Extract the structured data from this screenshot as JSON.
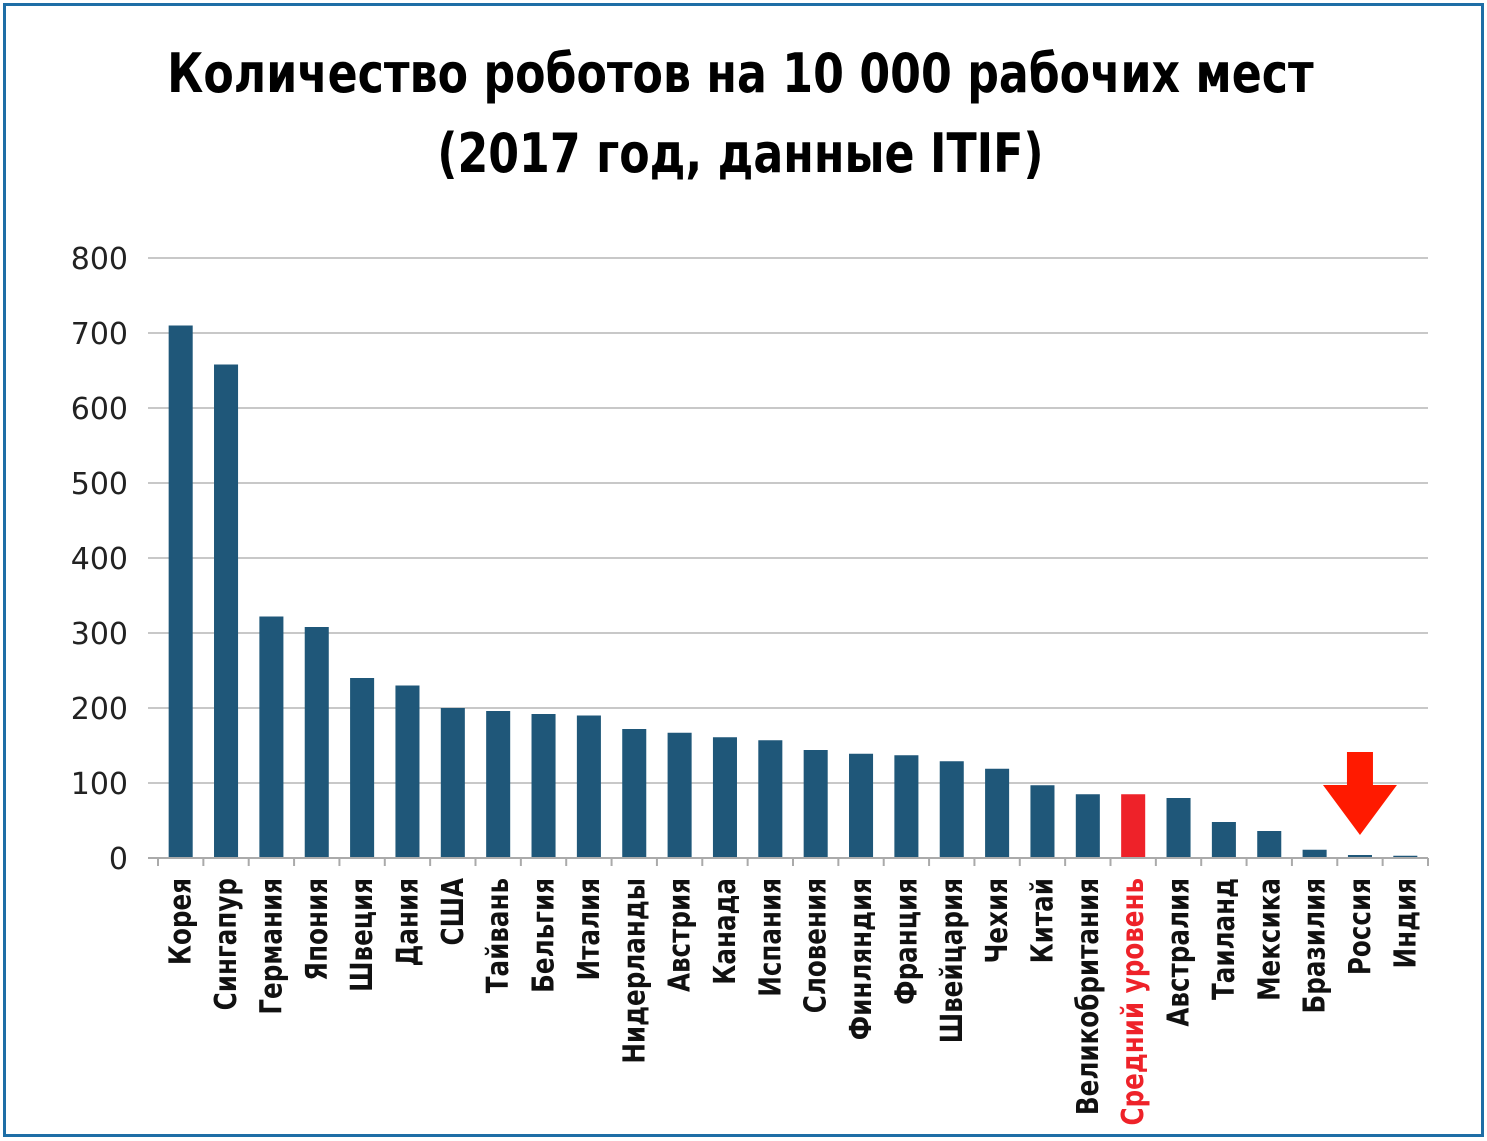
{
  "chart_data": {
    "type": "bar",
    "title_line1": "Количество роботов на 10 000 рабочих мест",
    "title_line2": "(2017 год, данные ITIF)",
    "xlabel": "",
    "ylabel": "",
    "ylim": [
      0,
      800
    ],
    "yticks": [
      0,
      100,
      200,
      300,
      400,
      500,
      600,
      700,
      800
    ],
    "grid": true,
    "categories": [
      "Корея",
      "Сингапур",
      "Германия",
      "Япония",
      "Швеция",
      "Дания",
      "США",
      "Тайвань",
      "Бельгия",
      "Италия",
      "Нидерланды",
      "Австрия",
      "Канада",
      "Испания",
      "Словения",
      "Финляндия",
      "Франция",
      "Швейцария",
      "Чехия",
      "Китай",
      "Великобритания",
      "Средний уровень",
      "Австралия",
      "Таиланд",
      "Мексика",
      "Бразилия",
      "Россия",
      "Индия"
    ],
    "values": [
      710,
      658,
      322,
      308,
      240,
      230,
      200,
      196,
      192,
      190,
      172,
      167,
      161,
      157,
      144,
      139,
      137,
      129,
      119,
      97,
      85,
      85,
      80,
      48,
      36,
      11,
      4,
      3
    ],
    "highlight_category": "Средний уровень",
    "arrow_target": "Россия",
    "colors": {
      "bar": "#1f5779",
      "highlight": "#ee2229",
      "arrow": "#ff1a00",
      "grid": "#c8c8c8",
      "frame": "#1e6ea6"
    }
  }
}
